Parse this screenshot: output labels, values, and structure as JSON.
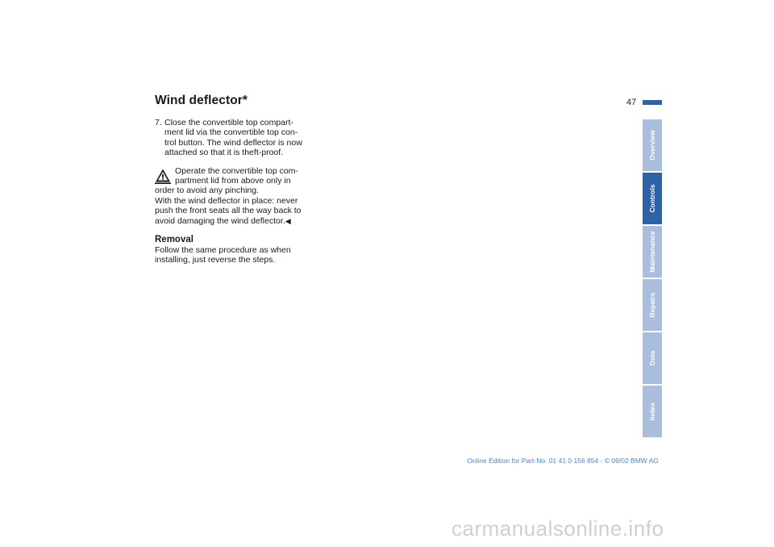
{
  "header": {
    "title": "Wind deflector*",
    "page_number": "47"
  },
  "content": {
    "step_number": "7.",
    "step_lines": [
      "Close the convertible top compart-",
      "ment lid via the convertible top con-",
      "trol button. The wind deflector is now",
      "attached so that it is theft-proof."
    ],
    "warning_lines": [
      "Operate the convertible top com-",
      "partment lid from above only in",
      "order to avoid any pinching.",
      "With the wind deflector in place: never",
      "push the front seats all the way back to",
      "avoid damaging the wind deflector."
    ],
    "end_mark": "◀",
    "removal_heading": "Removal",
    "removal_lines": [
      "Follow the same procedure as when",
      "installing, just reverse the steps."
    ]
  },
  "tabs": [
    {
      "label": "Overview"
    },
    {
      "label": "Controls"
    },
    {
      "label": "Maintenance"
    },
    {
      "label": "Repairs"
    },
    {
      "label": "Data"
    },
    {
      "label": "Index"
    }
  ],
  "active_tab": "Controls",
  "footer": {
    "edition": "Online Edition for Part-No. 01 41 0 156 854 - © 09/02 BMW AG"
  },
  "watermark": {
    "text": "carmanualsonline.info"
  },
  "colors": {
    "accent": "#2d62a8",
    "tab_inactive": "#a9bedc",
    "footer_text": "#4a84c9"
  },
  "icons": {
    "warning": "warning-triangle-icon"
  }
}
